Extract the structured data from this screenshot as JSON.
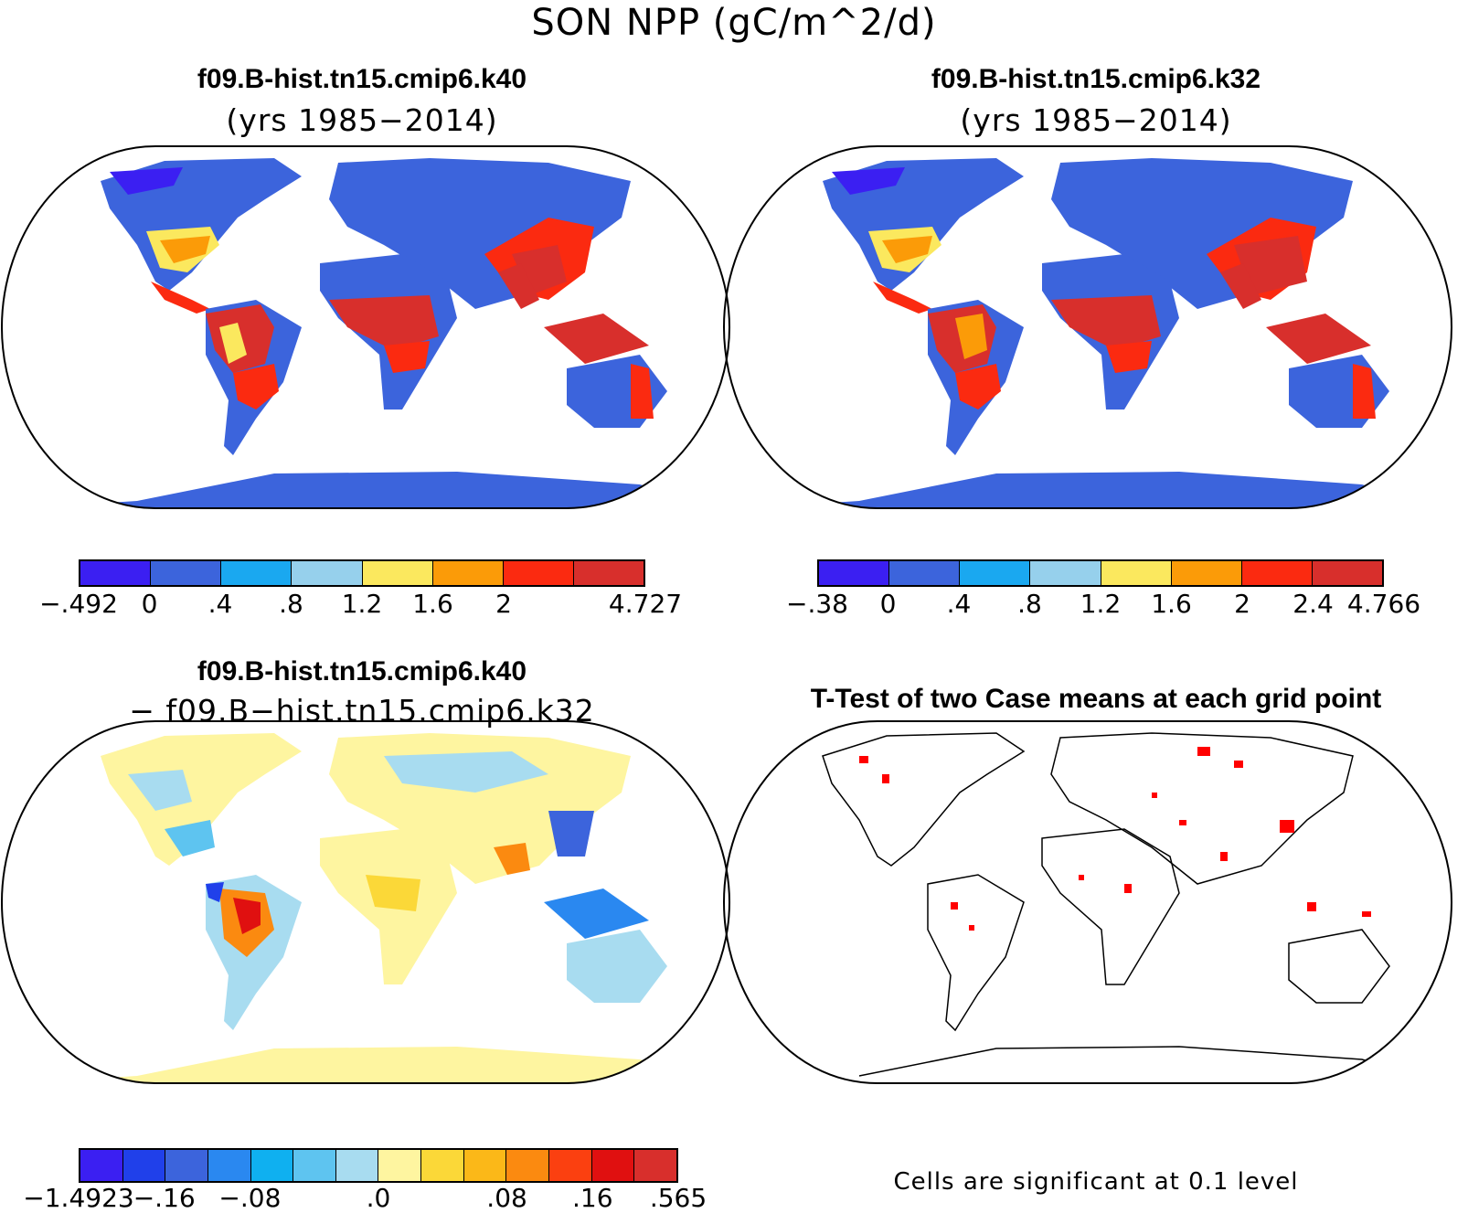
{
  "figure_title": "SON NPP (gC/m^2/d)",
  "panels": {
    "p1": {
      "title": "f09.B-hist.tn15.cmip6.k40",
      "subtitle": "(yrs 1985−2014)"
    },
    "p2": {
      "title": "f09.B-hist.tn15.cmip6.k32",
      "subtitle": "(yrs 1985−2014)"
    },
    "p3": {
      "title": "f09.B-hist.tn15.cmip6.k40",
      "subtitle": "− f09.B−hist.tn15.cmip6.k32"
    },
    "p4": {
      "title": "T-Test of two Case means at each grid point",
      "note": "Cells are significant at 0.1 level"
    }
  },
  "colorbars": {
    "cb1": {
      "colors": [
        "#3b1ff2",
        "#3c64dc",
        "#1aa8f0",
        "#96d0ec",
        "#fbe85e",
        "#fb9b08",
        "#fb2a10",
        "#d82f2c"
      ],
      "labels": [
        "−.492",
        "0",
        ".4",
        ".8",
        "1.2",
        "1.6",
        "2",
        "4.727"
      ],
      "label_at": [
        0,
        1,
        2,
        3,
        4,
        5,
        6,
        8
      ]
    },
    "cb2": {
      "colors": [
        "#3b1ff2",
        "#3c64dc",
        "#1aa8f0",
        "#96d0ec",
        "#fbe85e",
        "#fb9b08",
        "#fb2a10",
        "#d82f2c"
      ],
      "labels": [
        "−.38",
        "0",
        ".4",
        ".8",
        "1.2",
        "1.6",
        "2",
        "2.4",
        "4.766"
      ],
      "label_at": [
        0,
        1,
        2,
        3,
        4,
        5,
        6,
        7,
        8
      ]
    },
    "cb3": {
      "colors": [
        "#3b1ff2",
        "#2040ea",
        "#3c64dc",
        "#2a88f0",
        "#0fb0f0",
        "#5ec4f0",
        "#a8dcf0",
        "#fef5a0",
        "#fbd838",
        "#fbb818",
        "#fb8a10",
        "#fb4010",
        "#e01010",
        "#d82f2c"
      ],
      "labels": [
        "−1.4923",
        "−.16",
        "−.08",
        ".0",
        ".08",
        ".16",
        ".565"
      ],
      "label_at": [
        0,
        2,
        4,
        7,
        10,
        12,
        14
      ]
    }
  },
  "colors": {
    "land_base": "#3c64dc",
    "diff_base": "#fef5a0",
    "sig": "#ff0000"
  }
}
